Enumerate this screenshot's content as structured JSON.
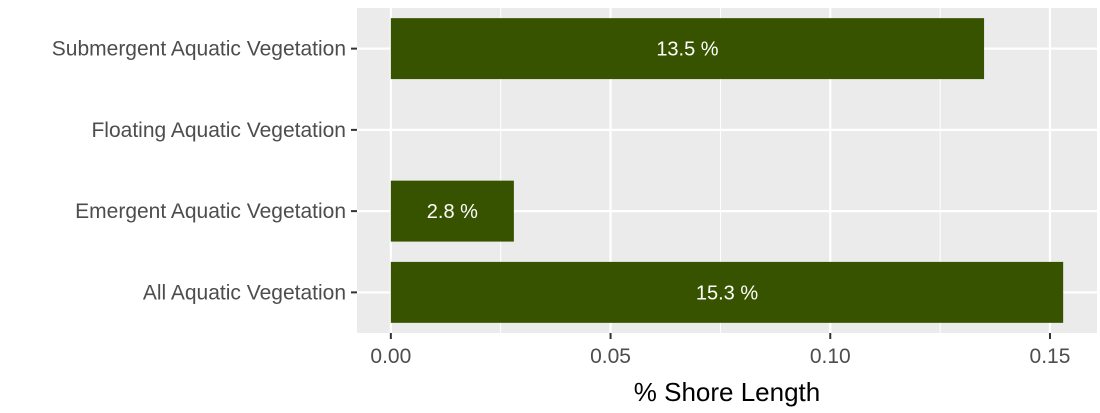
{
  "chart_data": {
    "type": "bar",
    "orientation": "horizontal",
    "categories": [
      "Submergent Aquatic Vegetation",
      "Floating Aquatic Vegetation",
      "Emergent Aquatic Vegetation",
      "All Aquatic Vegetation"
    ],
    "values": [
      0.135,
      0,
      0.028,
      0.153
    ],
    "data_labels": [
      "13.5 %",
      "",
      "2.8 %",
      "15.3 %"
    ],
    "xlabel": "% Shore Length",
    "ylabel": "",
    "title": "",
    "xlim": [
      -0.0077,
      0.1607
    ],
    "x_ticks": [
      0,
      0.05,
      0.1,
      0.15
    ],
    "x_tick_labels": [
      "0.00",
      "0.05",
      "0.10",
      "0.15"
    ],
    "grid": true,
    "colors": {
      "bar": "#375300",
      "panel": "#ebebeb",
      "grid_major": "#ffffff",
      "text": "#4d4d4d",
      "data_label": "#ffffff"
    }
  }
}
